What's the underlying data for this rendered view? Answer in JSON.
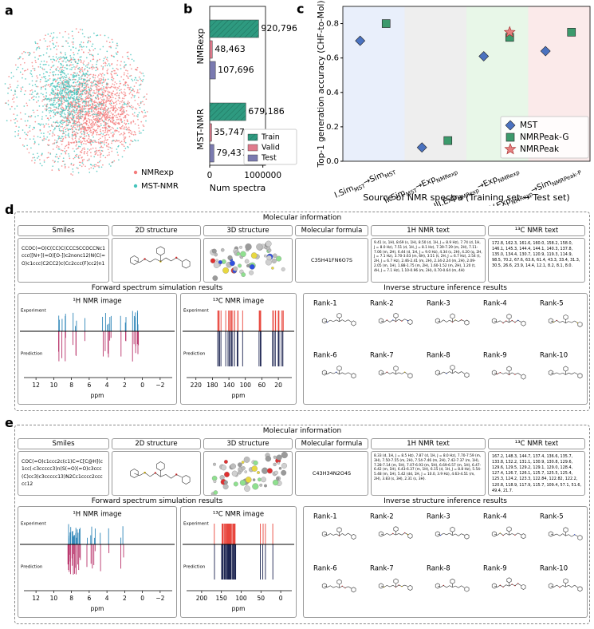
{
  "panel_labels": [
    "a",
    "b",
    "c",
    "d",
    "e"
  ],
  "embedding": {
    "series": [
      {
        "name": "NMRexp",
        "color": "#f47c7c"
      },
      {
        "name": "MST-NMR",
        "color": "#45c4bc"
      }
    ]
  },
  "chart_data": [
    {
      "type": "bar",
      "orientation": "horizontal",
      "categories": [
        "NMRexp",
        "MST-NMR"
      ],
      "series": [
        {
          "name": "Train",
          "color": "#2e9a80",
          "values": [
            920796,
            679186
          ],
          "value_labels": [
            "920,796",
            "679,186"
          ]
        },
        {
          "name": "Valid",
          "color": "#e07a8c",
          "values": [
            48463,
            35747
          ],
          "value_labels": [
            "48,463",
            "35,747"
          ]
        },
        {
          "name": "Test",
          "color": "#7a7ab0",
          "values": [
            107696,
            79437
          ],
          "value_labels": [
            "107,696",
            "79,437"
          ]
        }
      ],
      "xlabel": "Num spectra",
      "xlim": [
        0,
        1050000
      ],
      "xticks": [
        0,
        1000000
      ],
      "legend": "lower right"
    },
    {
      "type": "scatter",
      "categories": [
        [
          "I.Sim",
          "MST",
          "→Sim",
          "MST"
        ],
        [
          "II.Sim",
          "MST",
          "→Exp",
          "NMRexp"
        ],
        [
          "III.Exp",
          "NMRexp",
          "→Exp",
          "NMRexp"
        ],
        [
          "IV.Exp",
          "NMRexp",
          "→Sim",
          "NMRPeak-P"
        ]
      ],
      "band_colors": [
        "#e9effb",
        "#eeeeee",
        "#e8f7e8",
        "#fbeaea"
      ],
      "series": [
        {
          "name": "MST",
          "color": "#4a72c0",
          "marker": "diamond",
          "values": [
            0.7,
            0.08,
            0.61,
            0.64
          ]
        },
        {
          "name": "NMRPeak-G",
          "color": "#3c9a6c",
          "marker": "square",
          "values": [
            0.8,
            0.12,
            0.72,
            0.75
          ]
        },
        {
          "name": "NMRPeak",
          "color": "#e58080",
          "marker": "star",
          "values": [
            null,
            null,
            0.75,
            null
          ]
        }
      ],
      "ylabel": "Top-1 generation accuracy (CHF-to-Mol)",
      "xlabel": "Source of NMR spectra (Training set → Test set)",
      "ylim": [
        0,
        0.9
      ],
      "yticks": [
        {
          "value": 0,
          "label": "0.0"
        },
        {
          "value": 0.2,
          "label": "0.2"
        },
        {
          "value": 0.4,
          "label": "0.4"
        },
        {
          "value": 0.6,
          "label": "0.6"
        },
        {
          "value": 0.8,
          "label": "0.8"
        }
      ],
      "legend": "lower right"
    }
  ],
  "common": {
    "molecular_information": "Molecular information",
    "columns": [
      "Smiles",
      "2D structure",
      "3D structure",
      "Molecular formula",
      "1H NMR text",
      "¹³C NMR text"
    ],
    "forward": "Forward spectrum simulation results",
    "inverse": "Inverse structure inference results",
    "h_image": "¹H NMR image",
    "c_image": "¹³C NMR image",
    "experiment": "Experiment",
    "prediction": "Prediction",
    "ppm": "ppm",
    "ranks": [
      "Rank-1",
      "Rank-2",
      "Rank-3",
      "Rank-4",
      "Rank-5",
      "Rank-6",
      "Rank-7",
      "Rank-8",
      "Rank-9",
      "Rank-10"
    ]
  },
  "panels": [
    {
      "smiles": "CCOC(=O)C(CC)C(CCCSCCOCCNc1ccc([N+](=O)[O-])c2nonc12)N(C(=O)c1ccc(C2CC2)c(Cc2ccc(F)cc2)n1",
      "formula": "C35H41FN6O7S",
      "h_nmr_text": "9.41 (s, 1H), 8.69 (s, 1H), 8.50 (d, 1H, J = 8.9 Hz), 7.74 (d, 1H, J = 8.0 Hz), 7.51 (d, 1H, J = 8.1 Hz), 7.39-7.29 (m, 2H), 7.11-7.06 (m, 2H), 6.44 (d, 1H, J = 9.0 Hz), 4.34 (s, 2H), 4.20 (q, 2H, J = 7.1 Hz), 3.70-3.63 (m, 6H), 3.51 (t, 2H, J = 6.7 Hz), 2.54 (t, 2H, J = 6.7 Hz), 2.46-2.41 (m, 2H), 2.34-2.24 (m, 2H), 2.09-2.05 (m, 1H), 1.88-1.75 (m, 2H), 1.60-1.52 (m, 2H), 1.20 (t, 4H, J = 7.1 Hz), 1.10-0.96 (m, 2H), 0.70-0.64 (m, 4H)",
      "c_nmr_text": "172.8, 162.3, 161.6, 160.0, 158.2, 158.0, 146.1, 145.3, 144.4, 144.1, 140.3, 137.8, 135.0, 134.4, 130.7, 120.9, 119.3, 114.9, 98.5, 70.2, 67.6, 63.6, 61.4, 43.3, 33.4, 31.3, 30.5, 26.6, 23.9, 14.4, 12.1, 8.2, 8.1, 8.0.",
      "h_xlim": [
        13,
        -3
      ],
      "h_ticks": [
        12,
        10,
        8,
        6,
        4,
        2,
        0,
        {
          "value": -2,
          "label": "−2"
        }
      ],
      "c_xlim": [
        235,
        -5
      ],
      "c_ticks": [
        220,
        180,
        140,
        100,
        60,
        20
      ]
    },
    {
      "smiles": "COC(=O)c1ccc2c(c1)C=C[C@H](c1cc(-c3ccccc3)n(S(=O)(=O)c3ccc(C)cc3)c3ccccc13)N2Cc1cccc2ccccc12",
      "formula": "C43H34N2O4S",
      "h_nmr_text": "8.33 (d, 1H, J = 8.5 Hz), 7.87 (d, 1H, J = 8.0 Hz), 7.70-7.59 (m, 3H), 7.50-7.55 (m, 2H), 7.54-7.46 (m, 2H), 7.42-7.37 (m, 1H), 7.28-7.14 (m, 5H), 7.07-6.93 (m, 5H), 6.69-6.57 (m, 1H), 6.47-6.42 (m, 1H), 6.43-6.37 (m, 1H), 6.15 (d, 1H, J = 8.8 Hz), 5.54-5.48 (m, 1H), 5.42 (dd, 1H, J = 10.0, 3.9 Hz), 4.63-4.51 (m, 2H), 3.83 (s, 3H), 2.31 (s, 3H).",
      "c_nmr_text": "167.2, 148.3, 144.7, 137.4, 136.6, 135.7, 133.8, 132.2, 131.1, 130.9, 130.8, 129.6, 129.6, 129.5, 129.2, 129.1, 129.0, 128.4, 127.4, 126.7, 126.1, 125.7, 125.5, 125.4, 125.3, 124.2, 123.3, 122.84, 122.82, 122.2, 120.8, 118.9, 117.9, 115.7, 109.4, 57.1, 51.6, 49.4, 21.7.",
      "h_xlim": [
        13,
        -3
      ],
      "h_ticks": [
        12,
        10,
        8,
        6,
        4,
        2,
        0,
        {
          "value": -2,
          "label": "−2"
        }
      ],
      "c_xlim": [
        230,
        -20
      ],
      "c_ticks": [
        200,
        150,
        100,
        50,
        0
      ]
    }
  ]
}
